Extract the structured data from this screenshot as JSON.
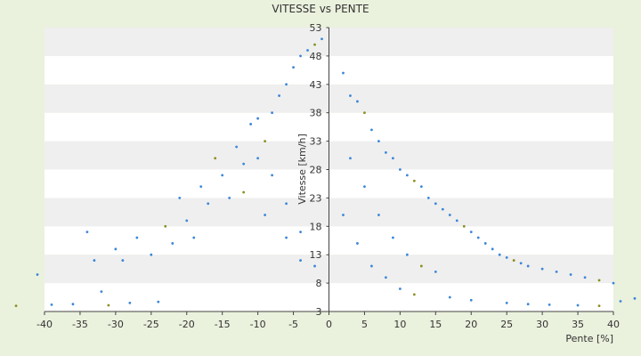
{
  "chart_data": {
    "type": "scatter",
    "title": "VITESSE vs PENTE",
    "xlabel": "Pente [%]",
    "ylabel": "Vitesse [km/h]",
    "xlim": [
      -40,
      40
    ],
    "ylim": [
      3,
      53
    ],
    "x_ticks": [
      -40,
      -35,
      -30,
      -25,
      -20,
      -15,
      -10,
      -5,
      0,
      5,
      10,
      15,
      20,
      25,
      30,
      35,
      40
    ],
    "y_ticks": [
      3,
      8,
      13,
      18,
      23,
      28,
      33,
      38,
      43,
      48,
      53
    ],
    "grid": "horizontal-bands",
    "legend": "none",
    "colors": {
      "background": "#eaf1dd",
      "plot_band_light": "#ffffff",
      "plot_band_dark": "#efefef",
      "series_primary": "#3b86d8",
      "series_secondary": "#8a8f1f",
      "axis": "#444444"
    },
    "series": [
      {
        "points": [
          [
            -44,
            4
          ],
          [
            -41,
            9.5
          ],
          [
            -39,
            4.2
          ],
          [
            -36,
            4.3
          ],
          [
            -34,
            17
          ],
          [
            -33,
            12
          ],
          [
            -32,
            6.5
          ],
          [
            -31,
            4.1
          ],
          [
            -30,
            14
          ],
          [
            -29,
            12
          ],
          [
            -28,
            4.5
          ],
          [
            -27,
            16
          ],
          [
            -25,
            13
          ],
          [
            -24,
            4.7
          ],
          [
            -23,
            18
          ],
          [
            -22,
            15
          ],
          [
            -21,
            23
          ],
          [
            -20,
            19
          ],
          [
            -19,
            16
          ],
          [
            -18,
            25
          ],
          [
            -17,
            22
          ],
          [
            -16,
            30
          ],
          [
            -15,
            27
          ],
          [
            -14,
            23
          ],
          [
            -13,
            32
          ],
          [
            -12,
            29
          ],
          [
            -11,
            36
          ],
          [
            -10,
            37
          ],
          [
            -9,
            33
          ],
          [
            -8,
            38
          ],
          [
            -7,
            41
          ],
          [
            -6,
            43
          ],
          [
            -5,
            46
          ],
          [
            -4,
            48
          ],
          [
            -3,
            49
          ],
          [
            -2,
            50
          ],
          [
            -1,
            51
          ],
          [
            -10,
            30
          ],
          [
            -8,
            27
          ],
          [
            -6,
            22
          ],
          [
            -4,
            17
          ],
          [
            -2,
            11
          ],
          [
            -12,
            24
          ],
          [
            -9,
            20
          ],
          [
            -6,
            16
          ],
          [
            -4,
            12
          ],
          [
            2,
            45
          ],
          [
            3,
            41
          ],
          [
            4,
            40
          ],
          [
            5,
            38
          ],
          [
            6,
            35
          ],
          [
            7,
            33
          ],
          [
            8,
            31
          ],
          [
            9,
            30
          ],
          [
            10,
            28
          ],
          [
            11,
            27
          ],
          [
            12,
            26
          ],
          [
            13,
            25
          ],
          [
            14,
            23
          ],
          [
            15,
            22
          ],
          [
            16,
            21
          ],
          [
            17,
            20
          ],
          [
            18,
            19
          ],
          [
            19,
            18
          ],
          [
            20,
            17
          ],
          [
            21,
            16
          ],
          [
            22,
            15
          ],
          [
            23,
            14
          ],
          [
            24,
            13
          ],
          [
            25,
            12.5
          ],
          [
            26,
            12
          ],
          [
            27,
            11.5
          ],
          [
            28,
            11
          ],
          [
            30,
            10.5
          ],
          [
            32,
            10
          ],
          [
            34,
            9.5
          ],
          [
            36,
            9
          ],
          [
            38,
            8.5
          ],
          [
            40,
            8
          ],
          [
            3,
            30
          ],
          [
            5,
            25
          ],
          [
            7,
            20
          ],
          [
            9,
            16
          ],
          [
            11,
            13
          ],
          [
            13,
            11
          ],
          [
            15,
            10
          ],
          [
            2,
            20
          ],
          [
            4,
            15
          ],
          [
            6,
            11
          ],
          [
            8,
            9
          ],
          [
            10,
            7
          ],
          [
            12,
            6
          ],
          [
            17,
            5.5
          ],
          [
            20,
            5
          ],
          [
            25,
            4.5
          ],
          [
            28,
            4.3
          ],
          [
            31,
            4.2
          ],
          [
            35,
            4.1
          ],
          [
            38,
            4.0
          ],
          [
            41,
            4.8
          ],
          [
            43,
            5.3
          ]
        ]
      }
    ]
  }
}
